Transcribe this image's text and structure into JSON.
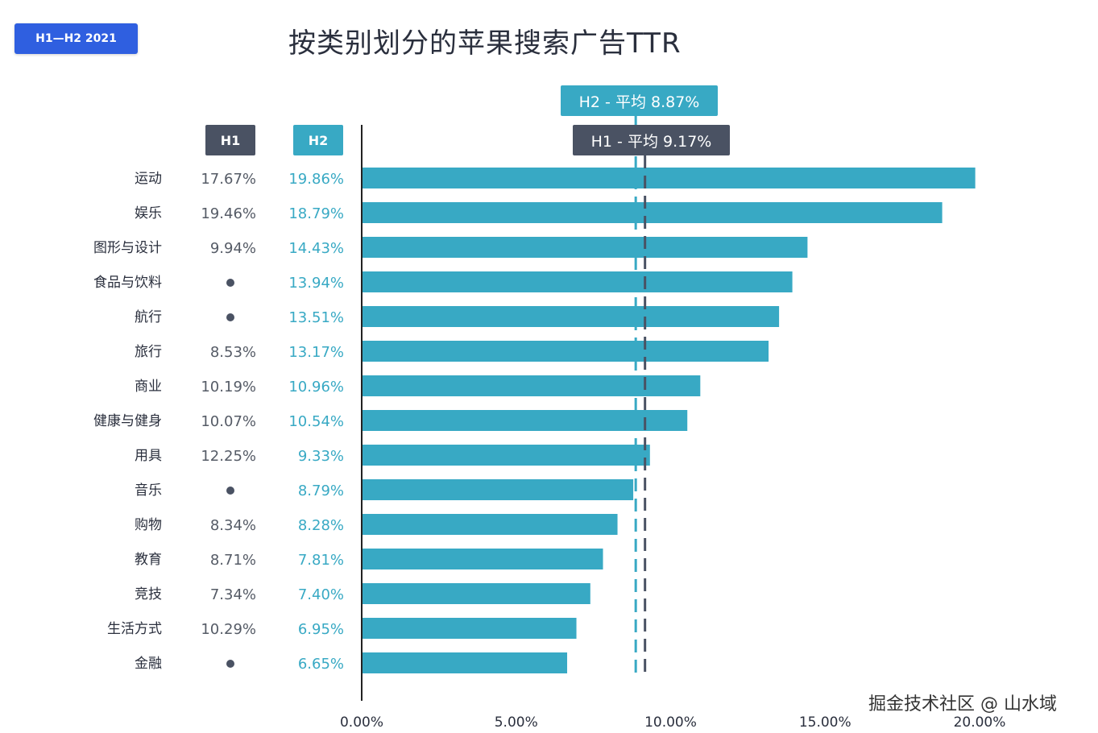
{
  "badge": "H1—H2 2021",
  "watermark": "掘金技术社区 @ 山水域",
  "chart_data": {
    "type": "bar",
    "orientation": "horizontal",
    "title": "按类别划分的苹果搜索广告TTR",
    "column_headers": {
      "h1": "H1",
      "h2": "H2"
    },
    "categories": [
      "运动",
      "娱乐",
      "图形与设计",
      "食品与饮料",
      "航行",
      "旅行",
      "商业",
      "健康与健身",
      "用具",
      "音乐",
      "购物",
      "教育",
      "竞技",
      "生活方式",
      "金融"
    ],
    "series": [
      {
        "name": "H1",
        "color": "#4a5263",
        "values": [
          17.67,
          19.46,
          9.94,
          null,
          null,
          8.53,
          10.19,
          10.07,
          12.25,
          null,
          8.34,
          8.71,
          7.34,
          10.29,
          null
        ],
        "labels": [
          "17.67%",
          "19.46%",
          "9.94%",
          "●",
          "●",
          "8.53%",
          "10.19%",
          "10.07%",
          "12.25%",
          "●",
          "8.34%",
          "8.71%",
          "7.34%",
          "10.29%",
          "●"
        ]
      },
      {
        "name": "H2",
        "color": "#38a9c4",
        "values": [
          19.86,
          18.79,
          14.43,
          13.94,
          13.51,
          13.17,
          10.96,
          10.54,
          9.33,
          8.79,
          8.28,
          7.81,
          7.4,
          6.95,
          6.65
        ],
        "labels": [
          "19.86%",
          "18.79%",
          "14.43%",
          "13.94%",
          "13.51%",
          "13.17%",
          "10.96%",
          "10.54%",
          "9.33%",
          "8.79%",
          "8.28%",
          "7.81%",
          "7.40%",
          "6.95%",
          "6.65%"
        ]
      }
    ],
    "reference_lines": [
      {
        "name": "H2",
        "value": 8.87,
        "label": "H2 - 平均 8.87%",
        "color": "#38a9c4"
      },
      {
        "name": "H1",
        "value": 9.17,
        "label": "H1 - 平均 9.17%",
        "color": "#4a5263"
      }
    ],
    "xlim": [
      0,
      20
    ],
    "xticks": [
      0,
      5,
      10,
      15,
      20
    ],
    "xtick_labels": [
      "0.00%",
      "5.00%",
      "10.00%",
      "15.00%",
      "20.00%"
    ],
    "grid": false
  }
}
